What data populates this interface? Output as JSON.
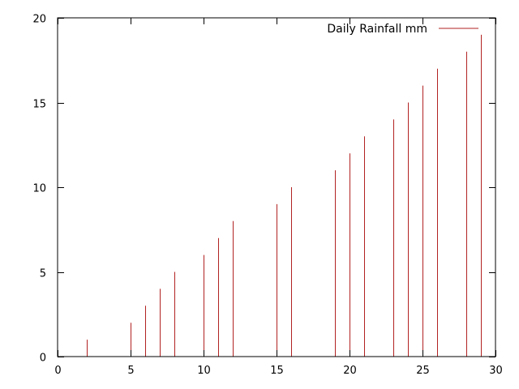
{
  "chart_data": {
    "type": "impulse",
    "x": [
      2,
      5,
      6,
      7,
      8,
      10,
      11,
      12,
      15,
      16,
      19,
      20,
      21,
      23,
      24,
      25,
      26,
      28,
      29
    ],
    "series": [
      {
        "name": "Daily Rainfall mm",
        "color": "#b22222",
        "values": [
          1,
          2,
          3,
          4,
          5,
          6,
          7,
          8,
          9,
          10,
          11,
          12,
          13,
          14,
          15,
          16,
          17,
          18,
          19
        ]
      }
    ],
    "xlim": [
      0,
      30
    ],
    "ylim": [
      0,
      20
    ],
    "xticks": [
      0,
      5,
      10,
      15,
      20,
      25,
      30
    ],
    "yticks": [
      0,
      5,
      10,
      15,
      20
    ],
    "grid": false,
    "legend_position": "top-right"
  }
}
